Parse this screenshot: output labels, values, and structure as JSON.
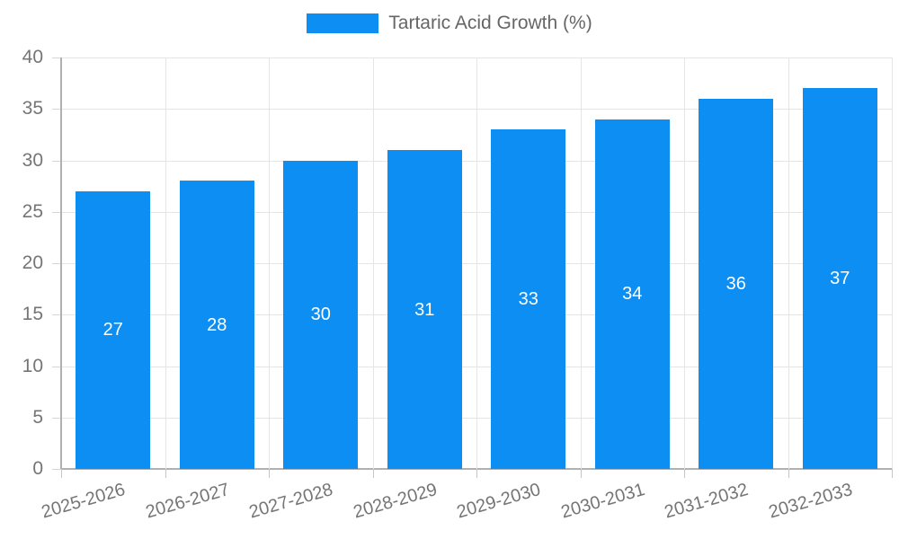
{
  "legend": {
    "label": "Tartaric Acid Growth (%)"
  },
  "chart_data": {
    "type": "bar",
    "title": "",
    "categories": [
      "2025-2026",
      "2026-2027",
      "2027-2028",
      "2028-2029",
      "2029-2030",
      "2030-2031",
      "2031-2032",
      "2032-2033"
    ],
    "series": [
      {
        "name": "Tartaric Acid Growth (%)",
        "values": [
          27,
          28,
          30,
          31,
          33,
          34,
          36,
          37
        ]
      }
    ],
    "value_labels": [
      "27",
      "28",
      "30",
      "31",
      "33",
      "34",
      "36",
      "37"
    ],
    "ylim": [
      0,
      40
    ],
    "yticks": [
      0,
      5,
      10,
      15,
      20,
      25,
      30,
      35,
      40
    ],
    "xlabel": "",
    "ylabel": "",
    "grid": true,
    "legend_position": "top-center",
    "bar_labels_inside": true
  },
  "colors": {
    "bar": "#0d8ef2",
    "grid": "#e5e5e5",
    "axis": "#b0b0b0",
    "tick_text": "#757575",
    "legend_text": "#666666",
    "value_label": "#ffffff",
    "background": "#ffffff"
  }
}
